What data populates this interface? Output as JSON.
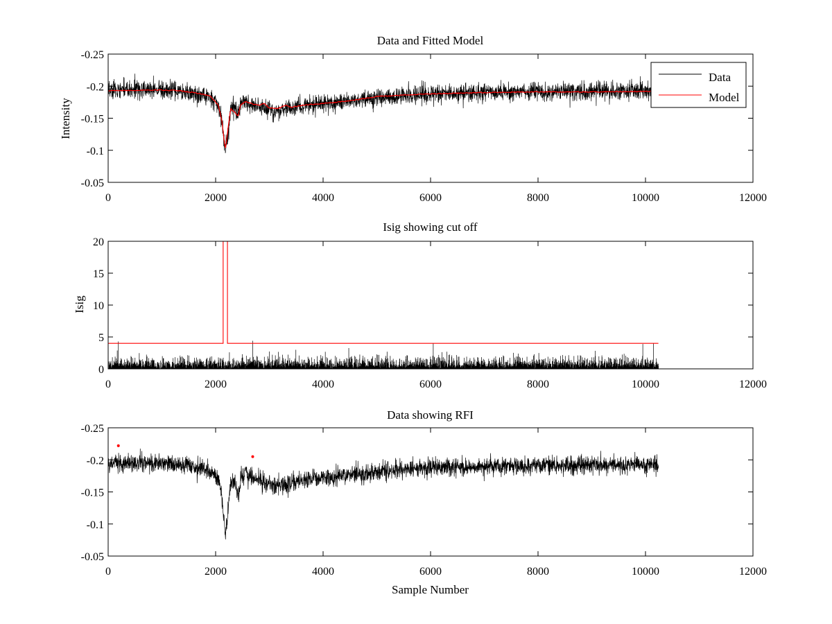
{
  "chart_data": [
    {
      "id": "top",
      "type": "line",
      "title": "Data and Fitted Model",
      "xlabel": "",
      "ylabel": "Intensity",
      "xlim": [
        0,
        12000
      ],
      "ylim": [
        -0.25,
        -0.05
      ],
      "y_reversed": true,
      "xticks": [
        0,
        2000,
        4000,
        6000,
        8000,
        10000,
        12000
      ],
      "xtick_labels": [
        "0",
        "2000",
        "4000",
        "6000",
        "8000",
        "10000",
        "12000"
      ],
      "yticks": [
        -0.05,
        -0.1,
        -0.15,
        -0.2,
        -0.25
      ],
      "ytick_labels": [
        "-0.05",
        "-0.1",
        "-0.15",
        "-0.2",
        "-0.25"
      ],
      "legend": {
        "placement": "top-right",
        "entries": [
          "Data",
          "Model"
        ]
      },
      "series": [
        {
          "name": "Data",
          "color": "#000000",
          "kind": "noisy",
          "x_start": 0,
          "x_end": 10240,
          "noise": 0.007,
          "baseline": [
            [
              0,
              -0.193
            ],
            [
              500,
              -0.195
            ],
            [
              1000,
              -0.195
            ],
            [
              1500,
              -0.19
            ],
            [
              1800,
              -0.186
            ],
            [
              2000,
              -0.175
            ],
            [
              2100,
              -0.155
            ],
            [
              2180,
              -0.1
            ],
            [
              2230,
              -0.125
            ],
            [
              2280,
              -0.165
            ],
            [
              2350,
              -0.165
            ],
            [
              2420,
              -0.158
            ],
            [
              2480,
              -0.175
            ],
            [
              2550,
              -0.178
            ],
            [
              2700,
              -0.172
            ],
            [
              2900,
              -0.165
            ],
            [
              3100,
              -0.162
            ],
            [
              3400,
              -0.165
            ],
            [
              3800,
              -0.171
            ],
            [
              4200,
              -0.174
            ],
            [
              4600,
              -0.178
            ],
            [
              5000,
              -0.182
            ],
            [
              6000,
              -0.188
            ],
            [
              7000,
              -0.19
            ],
            [
              8000,
              -0.191
            ],
            [
              9000,
              -0.192
            ],
            [
              10240,
              -0.193
            ]
          ]
        },
        {
          "name": "Model",
          "color": "#ff0000",
          "kind": "smooth",
          "points": [
            [
              0,
              -0.193
            ],
            [
              1000,
              -0.194
            ],
            [
              1300,
              -0.193
            ],
            [
              1600,
              -0.19
            ],
            [
              1900,
              -0.185
            ],
            [
              2050,
              -0.17
            ],
            [
              2120,
              -0.145
            ],
            [
              2180,
              -0.1
            ],
            [
              2240,
              -0.14
            ],
            [
              2280,
              -0.165
            ],
            [
              2350,
              -0.16
            ],
            [
              2420,
              -0.152
            ],
            [
              2460,
              -0.17
            ],
            [
              2550,
              -0.176
            ],
            [
              2700,
              -0.172
            ],
            [
              2800,
              -0.17
            ],
            [
              2900,
              -0.173
            ],
            [
              3000,
              -0.166
            ],
            [
              3150,
              -0.165
            ],
            [
              3300,
              -0.17
            ],
            [
              3400,
              -0.167
            ],
            [
              3600,
              -0.17
            ],
            [
              4000,
              -0.173
            ],
            [
              4500,
              -0.177
            ],
            [
              5000,
              -0.184
            ],
            [
              6000,
              -0.188
            ],
            [
              7000,
              -0.19
            ],
            [
              8000,
              -0.191
            ],
            [
              9000,
              -0.191
            ],
            [
              10240,
              -0.192
            ]
          ]
        }
      ]
    },
    {
      "id": "middle",
      "type": "line",
      "title": "Isig showing cut off",
      "xlabel": "",
      "ylabel": "Isig",
      "xlim": [
        0,
        12000
      ],
      "ylim": [
        0,
        20
      ],
      "y_reversed": false,
      "xticks": [
        0,
        2000,
        4000,
        6000,
        8000,
        10000,
        12000
      ],
      "xtick_labels": [
        "0",
        "2000",
        "4000",
        "6000",
        "8000",
        "10000",
        "12000"
      ],
      "yticks": [
        0,
        5,
        10,
        15,
        20
      ],
      "ytick_labels": [
        "0",
        "5",
        "10",
        "15",
        "20"
      ],
      "series": [
        {
          "color": "#000000",
          "kind": "bars",
          "x_start": 0,
          "x_end": 10240,
          "mean": 0.9,
          "max": 3.5,
          "spikes": [
            [
              190,
              4.3
            ],
            [
              2690,
              4.4
            ],
            [
              6050,
              4.0
            ],
            [
              9950,
              3.9
            ],
            [
              10150,
              4.0
            ]
          ]
        },
        {
          "color": "#ff0000",
          "kind": "step",
          "points": [
            [
              0,
              4
            ],
            [
              2140,
              4
            ],
            [
              2140,
              20
            ],
            [
              2220,
              20
            ],
            [
              2220,
              4
            ],
            [
              10240,
              4
            ]
          ]
        }
      ]
    },
    {
      "id": "bottom",
      "type": "line",
      "title": "Data showing RFI",
      "xlabel": "Sample Number",
      "ylabel": "",
      "xlim": [
        0,
        12000
      ],
      "ylim": [
        -0.25,
        -0.05
      ],
      "y_reversed": true,
      "xticks": [
        0,
        2000,
        4000,
        6000,
        8000,
        10000,
        12000
      ],
      "xtick_labels": [
        "0",
        "2000",
        "4000",
        "6000",
        "8000",
        "10000",
        "12000"
      ],
      "yticks": [
        -0.05,
        -0.1,
        -0.15,
        -0.2,
        -0.25
      ],
      "ytick_labels": [
        "-0.05",
        "-0.1",
        "-0.15",
        "-0.2",
        "-0.25"
      ],
      "series": [
        {
          "color": "#000000",
          "kind": "noisy",
          "x_start": 0,
          "x_end": 10240,
          "noise": 0.007,
          "baseline": [
            [
              0,
              -0.193
            ],
            [
              500,
              -0.195
            ],
            [
              1000,
              -0.195
            ],
            [
              1500,
              -0.19
            ],
            [
              1800,
              -0.186
            ],
            [
              2000,
              -0.175
            ],
            [
              2100,
              -0.155
            ],
            [
              2180,
              -0.085
            ],
            [
              2230,
              -0.12
            ],
            [
              2280,
              -0.165
            ],
            [
              2350,
              -0.165
            ],
            [
              2420,
              -0.145
            ],
            [
              2480,
              -0.175
            ],
            [
              2550,
              -0.178
            ],
            [
              2700,
              -0.172
            ],
            [
              2900,
              -0.165
            ],
            [
              3100,
              -0.158
            ],
            [
              3400,
              -0.165
            ],
            [
              3800,
              -0.171
            ],
            [
              4200,
              -0.174
            ],
            [
              4600,
              -0.178
            ],
            [
              5000,
              -0.182
            ],
            [
              6000,
              -0.188
            ],
            [
              7000,
              -0.19
            ],
            [
              8000,
              -0.191
            ],
            [
              9000,
              -0.192
            ],
            [
              10240,
              -0.193
            ]
          ]
        },
        {
          "color": "#ff0000",
          "kind": "markers",
          "points": [
            [
              190,
              -0.222
            ],
            [
              2690,
              -0.205
            ]
          ]
        }
      ]
    }
  ]
}
